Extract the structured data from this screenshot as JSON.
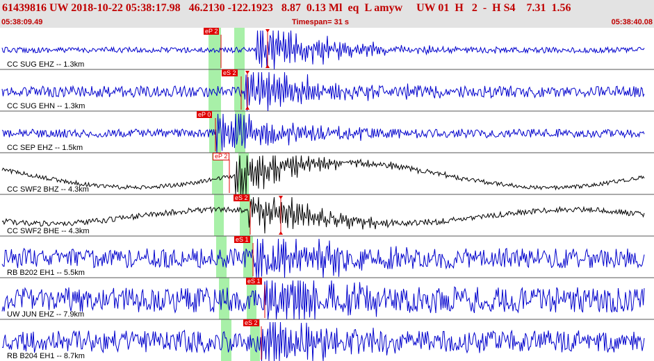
{
  "header": {
    "event_line": "61439816 UW 2018-10-22 05:38:17.98   46.2130 -122.1923   8.87  0.13 Ml  eq  L amyw     UW 01  H   2  -  H S4    7.31  1.56",
    "start_time": "05:38:09.49",
    "timespan": "Timespan=  31 s",
    "end_time": "05:38:40.08"
  },
  "colors": {
    "header_bg": "#e3e3e3",
    "header_text": "#c00000",
    "trace_blue": "#0000cc",
    "trace_black": "#000000",
    "pick_red": "#e00000",
    "window_green": "#a8f0a8"
  },
  "traces": [
    {
      "label": "CC SUG EHZ -- 1.3km",
      "color": "blue",
      "picks": [
        "eP 2"
      ]
    },
    {
      "label": "CC SUG EHN -- 1.3km",
      "color": "blue",
      "picks": [
        "eS 2"
      ]
    },
    {
      "label": "CC SEP EHZ -- 1.5km",
      "color": "blue",
      "picks": [
        "eP 0"
      ]
    },
    {
      "label": "CC SWF2 BHZ -- 4.3km",
      "color": "black",
      "picks": [
        "eP 2"
      ]
    },
    {
      "label": "CC SWF2 BHE -- 4.3km",
      "color": "black",
      "picks": [
        "eS 2"
      ]
    },
    {
      "label": "RB B202 EH1 -- 5.5km",
      "color": "blue",
      "picks": [
        "eS 1"
      ]
    },
    {
      "label": "UW JUN EHZ -- 7.9km",
      "color": "blue",
      "picks": [
        "eS 1"
      ]
    },
    {
      "label": "RB B204 EH1 -- 8.7km",
      "color": "blue",
      "picks": [
        "eS 2"
      ]
    }
  ]
}
